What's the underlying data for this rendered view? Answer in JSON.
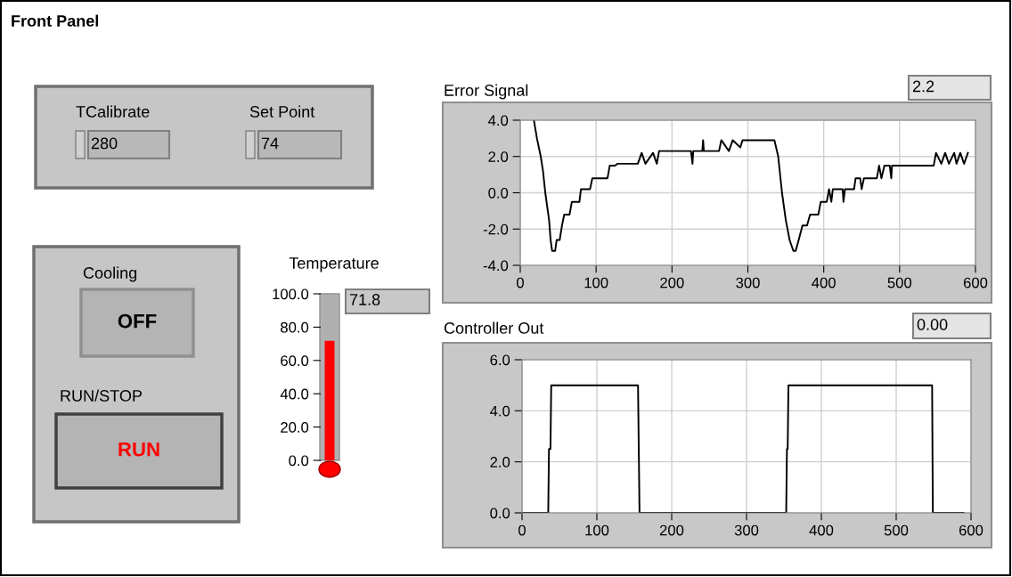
{
  "chart_data": [
    {
      "type": "other",
      "title": "Front Panel",
      "annotations": [
        "TCalibrate",
        "280",
        "Set Point",
        "74",
        "Cooling",
        "OFF",
        "RUN/STOP",
        "RUN"
      ]
    },
    {
      "type": "bar",
      "title": "Temperature",
      "categories": [
        null
      ],
      "values": [
        71.8
      ],
      "color": "#ff0000",
      "ylim": [
        0,
        100
      ],
      "yticks": [
        {
          "value": 0,
          "label": "0.0"
        },
        {
          "value": 20,
          "label": "20.0"
        },
        {
          "value": 40,
          "label": "40.0"
        },
        {
          "value": 60,
          "label": "60.0"
        },
        {
          "value": 80,
          "label": "80.0"
        },
        {
          "value": 100,
          "label": "100.0"
        }
      ],
      "annotations": [
        "71.8"
      ]
    },
    {
      "type": "line",
      "title": "Error Signal",
      "annotations": [
        "2.2"
      ],
      "grid": true,
      "xlim": [
        0,
        600
      ],
      "ylim": [
        -4,
        4
      ],
      "xticks": [
        0,
        100,
        200,
        300,
        400,
        500,
        600
      ],
      "yticks": [
        {
          "value": -4,
          "label": "-4.0"
        },
        {
          "value": -2,
          "label": "-2.0"
        },
        {
          "value": 0,
          "label": "0.0"
        },
        {
          "value": 2,
          "label": "2.0"
        },
        {
          "value": 4,
          "label": "4.0"
        }
      ],
      "series": [
        {
          "color": "#000000",
          "x": [
            18,
            22,
            27,
            30,
            33,
            38,
            40,
            42,
            46,
            48,
            52,
            55,
            58,
            65,
            68,
            78,
            80,
            92,
            95,
            115,
            118,
            125,
            128,
            155,
            160,
            165,
            175,
            180,
            183,
            225,
            227,
            228,
            240,
            241,
            242,
            262,
            265,
            275,
            280,
            290,
            293,
            335,
            340,
            345,
            350,
            355,
            360,
            363,
            367,
            372,
            378,
            382,
            393,
            396,
            404,
            407,
            410,
            412,
            425,
            426,
            428,
            440,
            442,
            448,
            450,
            453,
            470,
            473,
            476,
            480,
            487,
            489,
            490,
            545,
            548,
            555,
            560,
            565,
            572,
            575,
            580,
            585,
            590
          ],
          "values": [
            4.0,
            3.0,
            2.0,
            1.2,
            0,
            -1.5,
            -2.6,
            -3.2,
            -3.2,
            -2.6,
            -2.6,
            -1.8,
            -1.2,
            -1.2,
            -0.5,
            -0.5,
            0.2,
            0.2,
            0.8,
            0.8,
            1.5,
            1.5,
            1.6,
            1.6,
            2.2,
            1.6,
            2.2,
            1.6,
            2.3,
            2.3,
            1.6,
            2.3,
            2.3,
            2.9,
            2.3,
            2.3,
            2.9,
            2.3,
            2.9,
            2.5,
            2.9,
            2.9,
            2.0,
            0,
            -1.5,
            -2.6,
            -3.2,
            -3.2,
            -2.6,
            -1.8,
            -1.8,
            -1.2,
            -1.2,
            -0.5,
            -0.5,
            0.2,
            -0.5,
            0.2,
            0.2,
            -0.5,
            0.2,
            0.2,
            0.8,
            0.8,
            0.2,
            0.8,
            0.8,
            1.5,
            0.8,
            1.5,
            1.5,
            0.8,
            1.5,
            1.5,
            2.2,
            1.6,
            2.2,
            1.6,
            2.2,
            1.6,
            2.2,
            1.6,
            2.2
          ]
        }
      ]
    },
    {
      "type": "line",
      "title": "Controller Out",
      "annotations": [
        "0.00"
      ],
      "grid": true,
      "xlim": [
        0,
        600
      ],
      "ylim": [
        0,
        6
      ],
      "xticks": [
        0,
        100,
        200,
        300,
        400,
        500,
        600
      ],
      "yticks": [
        {
          "value": 0,
          "label": "0.0"
        },
        {
          "value": 2,
          "label": "2.0"
        },
        {
          "value": 4,
          "label": "4.0"
        },
        {
          "value": 6,
          "label": "6.0"
        }
      ],
      "series": [
        {
          "color": "#000000",
          "x": [
            0,
            35,
            36,
            38,
            39,
            155,
            156,
            157,
            353,
            354,
            355,
            356,
            548,
            549,
            590
          ],
          "values": [
            0,
            0,
            2.5,
            2.5,
            5,
            5,
            2.5,
            0,
            0,
            2.5,
            2.5,
            5,
            5,
            0,
            0
          ]
        }
      ]
    }
  ]
}
